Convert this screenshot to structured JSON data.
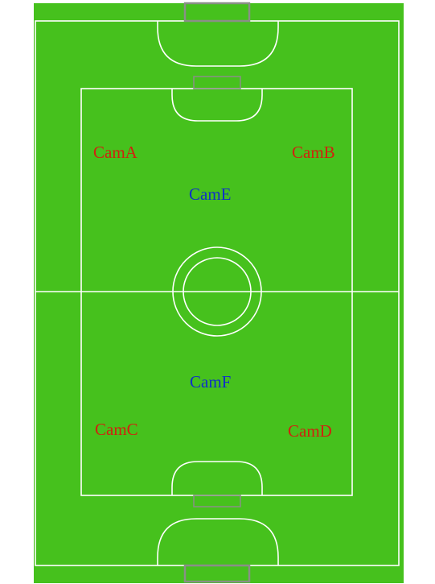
{
  "field": {
    "turf_color": "#46c11d",
    "line_color": "#ffffff",
    "goal_color": "#8a8f87"
  },
  "cameras": [
    {
      "id": "cam-a",
      "label": "CamA",
      "color": "#d0220f"
    },
    {
      "id": "cam-b",
      "label": "CamB",
      "color": "#d0220f"
    },
    {
      "id": "cam-c",
      "label": "CamC",
      "color": "#d0220f"
    },
    {
      "id": "cam-d",
      "label": "CamD",
      "color": "#d0220f"
    },
    {
      "id": "cam-e",
      "label": "CamE",
      "color": "#1030c8"
    },
    {
      "id": "cam-f",
      "label": "CamF",
      "color": "#1030c8"
    }
  ]
}
